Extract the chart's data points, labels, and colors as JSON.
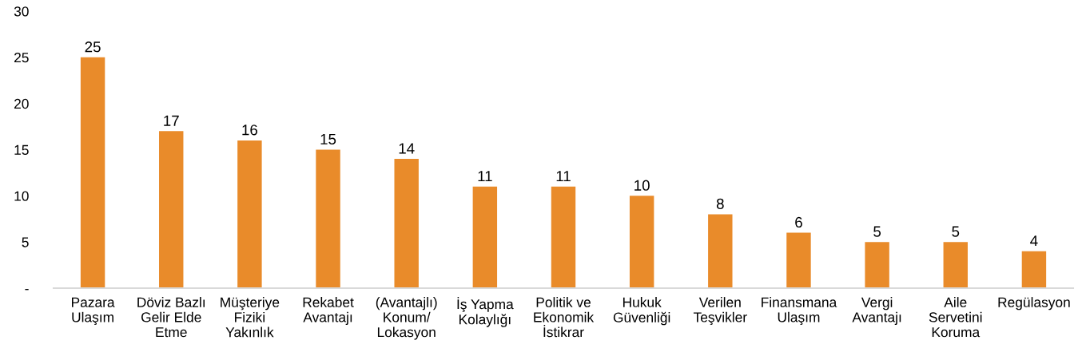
{
  "chart_data": {
    "type": "bar",
    "categories": [
      "Pazara\nUlaşım",
      "Döviz Bazlı\nGelir Elde\nEtme",
      "Müşteriye\nFiziki\nYakınlık",
      "Rekabet\nAvantajı",
      "(Avantajlı)\nKonum/\nLokasyon",
      "İş Yapma\nKolaylığı",
      "Politik ve\nEkonomik\nİstikrar",
      "Hukuk\nGüvenliği",
      "Verilen\nTeşvikler",
      "Finansmana\nUlaşım",
      "Vergi\nAvantajı",
      "Aile\nServetini\nKoruma",
      "Regülasyon"
    ],
    "values": [
      25,
      17,
      16,
      15,
      14,
      11,
      11,
      10,
      8,
      6,
      5,
      5,
      4
    ],
    "color": "#e98b2a",
    "ylim": [
      0,
      30
    ],
    "yticks": [
      {
        "value": 0,
        "label": "-"
      },
      5,
      10,
      15,
      20,
      25,
      30
    ],
    "data_labels": true
  }
}
